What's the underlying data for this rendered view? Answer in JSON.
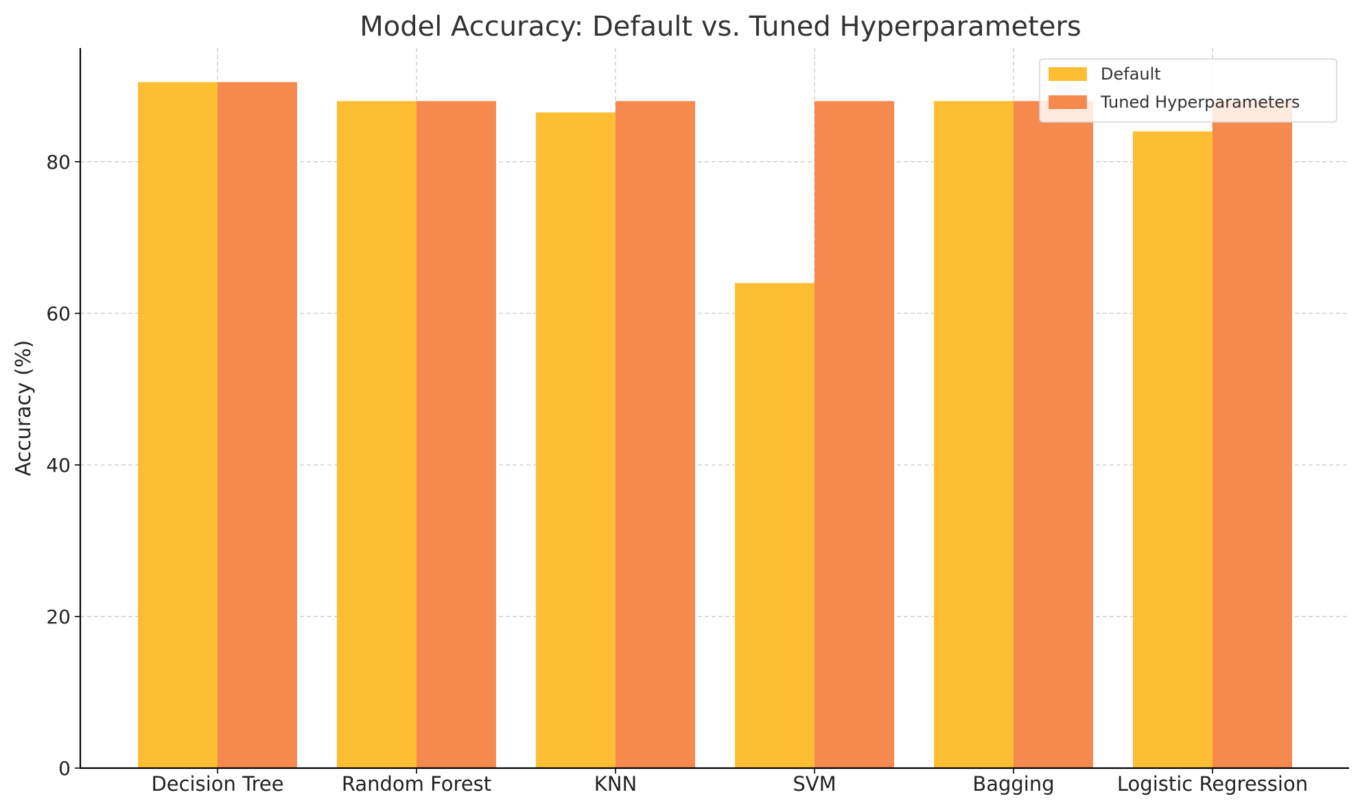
{
  "chart_data": {
    "type": "bar",
    "title": "Model Accuracy: Default vs. Tuned Hyperparameters",
    "xlabel": "",
    "ylabel": "Accuracy (%)",
    "categories": [
      "Decision Tree",
      "Random Forest",
      "KNN",
      "SVM",
      "Bagging",
      "Logistic Regression"
    ],
    "series": [
      {
        "name": "Default",
        "color": "#FDBE33",
        "values": [
          90.5,
          88.0,
          86.5,
          64.0,
          88.0,
          84.0
        ]
      },
      {
        "name": "Tuned Hyperparameters",
        "color": "#F68A4E",
        "values": [
          90.5,
          88.0,
          88.0,
          88.0,
          88.0,
          88.0
        ]
      }
    ],
    "ylim": [
      0,
      95
    ],
    "yticks": [
      0,
      20,
      40,
      60,
      80
    ],
    "grid": true,
    "legend_position": "top-right"
  }
}
